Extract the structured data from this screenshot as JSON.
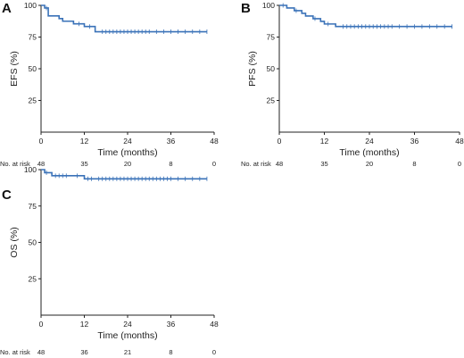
{
  "chart_data": [
    {
      "type": "line",
      "panel_label": "A",
      "xlabel": "Time (months)",
      "ylabel": "EFS (%)",
      "xlim": [
        0,
        48
      ],
      "ylim": [
        0,
        100
      ],
      "x_ticks": [
        0,
        12,
        24,
        36,
        48
      ],
      "y_ticks": [
        25,
        50,
        75,
        100
      ],
      "grid": false,
      "line_color": "#3a72b8",
      "series": [
        {
          "step_x": [
            0,
            1,
            2,
            5,
            6,
            9,
            10,
            12,
            13,
            15,
            46
          ],
          "step_y": [
            100,
            97.9,
            91.7,
            89.6,
            87.5,
            85.4,
            85.4,
            83.3,
            83.3,
            79.2,
            79.2
          ],
          "censored_x": [
            1.5,
            10.5,
            13.5,
            17,
            18,
            19,
            20,
            21,
            22,
            23,
            24,
            25,
            26,
            27,
            28,
            29,
            30,
            32,
            34,
            36,
            38,
            40,
            42,
            44,
            46
          ]
        }
      ],
      "risk_table": {
        "label": "No. at risk",
        "values": [
          "48",
          "35",
          "20",
          "8",
          "0"
        ]
      }
    },
    {
      "type": "line",
      "panel_label": "B",
      "xlabel": "Time (months)",
      "ylabel": "PFS (%)",
      "xlim": [
        0,
        48
      ],
      "ylim": [
        0,
        100
      ],
      "x_ticks": [
        0,
        12,
        24,
        36,
        48
      ],
      "y_ticks": [
        25,
        50,
        75,
        100
      ],
      "grid": false,
      "line_color": "#3a72b8",
      "series": [
        {
          "step_x": [
            0,
            2,
            4,
            6,
            7,
            9,
            11,
            12,
            15,
            46
          ],
          "step_y": [
            100,
            97.9,
            95.8,
            93.7,
            91.6,
            89.5,
            87.4,
            85.3,
            83.3,
            83.3
          ],
          "censored_x": [
            1,
            4.5,
            9.5,
            13,
            17,
            18,
            19,
            20,
            21,
            22,
            23,
            24,
            25,
            26,
            27,
            28,
            29,
            30,
            32,
            34,
            36,
            38,
            40,
            42,
            44,
            46
          ]
        }
      ],
      "risk_table": {
        "label": "No. at risk",
        "values": [
          "48",
          "35",
          "20",
          "8",
          "0"
        ]
      }
    },
    {
      "type": "line",
      "panel_label": "C",
      "xlabel": "Time (months)",
      "ylabel": "OS (%)",
      "xlim": [
        0,
        48
      ],
      "ylim": [
        0,
        100
      ],
      "x_ticks": [
        0,
        12,
        24,
        36,
        48
      ],
      "y_ticks": [
        25,
        50,
        75,
        100
      ],
      "grid": false,
      "line_color": "#3a72b8",
      "series": [
        {
          "step_x": [
            0,
            1,
            3,
            12,
            46
          ],
          "step_y": [
            100,
            97.9,
            95.8,
            93.7,
            93.7
          ],
          "censored_x": [
            1.5,
            4,
            5,
            6,
            7,
            10,
            13,
            14,
            16,
            17,
            18,
            19,
            20,
            21,
            22,
            23,
            24,
            25,
            26,
            27,
            28,
            29,
            30,
            31,
            32,
            33,
            34,
            35,
            36,
            38,
            40,
            42,
            44,
            46
          ]
        }
      ],
      "risk_table": {
        "label": "No. at risk",
        "values": [
          "48",
          "36",
          "21",
          "8",
          "0"
        ]
      }
    }
  ]
}
